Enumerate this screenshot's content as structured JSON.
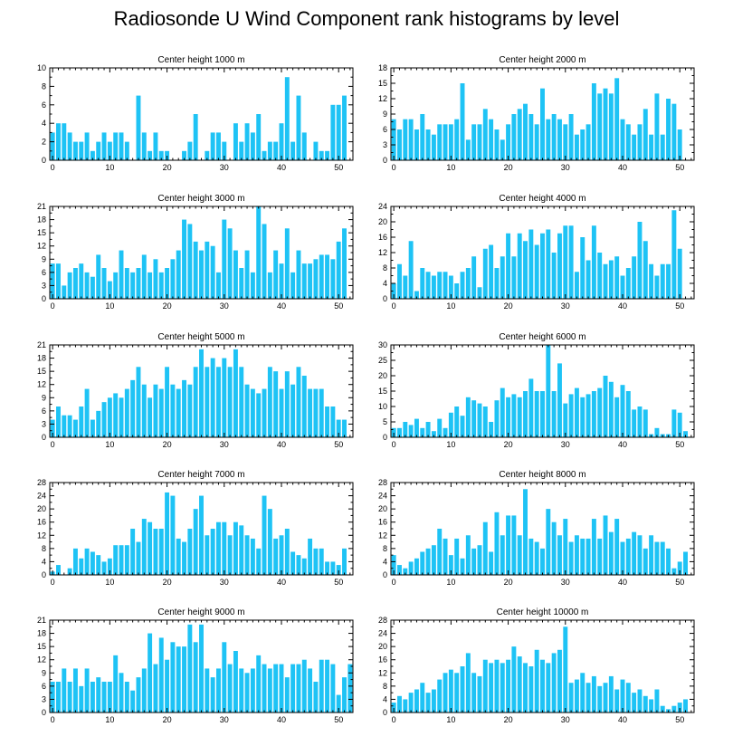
{
  "title": "Radiosonde U Wind Component rank histograms by level",
  "bar_color": "#1ec3f5",
  "chart_data": [
    {
      "type": "bar",
      "title": "Center height 1000 m",
      "xlim": [
        -0.5,
        52.5
      ],
      "ylim": [
        0,
        10
      ],
      "xticks": [
        0,
        10,
        20,
        30,
        40,
        50
      ],
      "yticks": [
        0,
        2,
        4,
        6,
        8,
        10
      ],
      "values": [
        3,
        4,
        4,
        3,
        2,
        2,
        3,
        1,
        2,
        3,
        2,
        3,
        3,
        2,
        0,
        7,
        3,
        1,
        3,
        1,
        1,
        0,
        0,
        1,
        2,
        5,
        0,
        1,
        3,
        3,
        2,
        0,
        4,
        2,
        4,
        3,
        5,
        1,
        2,
        2,
        4,
        9,
        2,
        7,
        3,
        0,
        2,
        1,
        1,
        6,
        6,
        7
      ]
    },
    {
      "type": "bar",
      "title": "Center height 2000 m",
      "xlim": [
        -0.5,
        52.5
      ],
      "ylim": [
        0,
        18
      ],
      "xticks": [
        0,
        10,
        20,
        30,
        40,
        50
      ],
      "yticks": [
        0,
        3,
        6,
        9,
        12,
        15,
        18
      ],
      "values": [
        8,
        6,
        8,
        8,
        6,
        9,
        6,
        5,
        7,
        7,
        7,
        8,
        15,
        4,
        7,
        7,
        10,
        8,
        6,
        4,
        7,
        9,
        10,
        11,
        9,
        7,
        14,
        8,
        9,
        8,
        7,
        9,
        5,
        6,
        7,
        15,
        13,
        14,
        13,
        16,
        8,
        7,
        5,
        7,
        10,
        5,
        13,
        5,
        12,
        11,
        6
      ]
    },
    {
      "type": "bar",
      "title": "Center height 3000 m",
      "xlim": [
        -0.5,
        52.5
      ],
      "ylim": [
        0,
        21
      ],
      "xticks": [
        0,
        10,
        20,
        30,
        40,
        50
      ],
      "yticks": [
        0,
        3,
        6,
        9,
        12,
        15,
        18,
        21
      ],
      "values": [
        8,
        8,
        3,
        6,
        7,
        8,
        6,
        5,
        10,
        7,
        4,
        6,
        11,
        7,
        6,
        7,
        10,
        6,
        9,
        6,
        7,
        9,
        11,
        18,
        17,
        13,
        11,
        13,
        12,
        6,
        18,
        16,
        11,
        7,
        11,
        6,
        21,
        17,
        6,
        11,
        8,
        16,
        6,
        11,
        8,
        8,
        9,
        10,
        10,
        9,
        13,
        16
      ]
    },
    {
      "type": "bar",
      "title": "Center height 4000 m",
      "xlim": [
        -0.5,
        52.5
      ],
      "ylim": [
        0,
        24
      ],
      "xticks": [
        0,
        10,
        20,
        30,
        40,
        50
      ],
      "yticks": [
        0,
        4,
        8,
        12,
        16,
        20,
        24
      ],
      "values": [
        4,
        9,
        6,
        15,
        2,
        8,
        7,
        6,
        7,
        7,
        6,
        4,
        7,
        8,
        11,
        3,
        13,
        14,
        8,
        11,
        17,
        11,
        17,
        15,
        18,
        14,
        17,
        18,
        12,
        17,
        19,
        19,
        7,
        16,
        10,
        19,
        12,
        9,
        10,
        11,
        6,
        8,
        11,
        20,
        15,
        9,
        6,
        9,
        9,
        23,
        13
      ]
    },
    {
      "type": "bar",
      "title": "Center height 5000 m",
      "xlim": [
        -0.5,
        52.5
      ],
      "ylim": [
        0,
        21
      ],
      "xticks": [
        0,
        10,
        20,
        30,
        40,
        50
      ],
      "yticks": [
        0,
        3,
        6,
        9,
        12,
        15,
        18,
        21
      ],
      "values": [
        4,
        7,
        5,
        5,
        4,
        7,
        11,
        4,
        6,
        8,
        9,
        10,
        9,
        11,
        13,
        16,
        12,
        9,
        12,
        11,
        16,
        12,
        11,
        13,
        12,
        16,
        20,
        16,
        18,
        16,
        18,
        16,
        20,
        16,
        12,
        11,
        10,
        11,
        16,
        15,
        11,
        15,
        12,
        16,
        14,
        11,
        11,
        11,
        7,
        7,
        4,
        4
      ]
    },
    {
      "type": "bar",
      "title": "Center height 6000 m",
      "xlim": [
        -0.5,
        52.5
      ],
      "ylim": [
        0,
        30
      ],
      "xticks": [
        0,
        10,
        20,
        30,
        40,
        50
      ],
      "yticks": [
        0,
        5,
        10,
        15,
        20,
        25,
        30
      ],
      "values": [
        3,
        3,
        5,
        4,
        6,
        3,
        5,
        2,
        6,
        3,
        8,
        10,
        7,
        13,
        12,
        11,
        10,
        5,
        12,
        16,
        13,
        14,
        13,
        15,
        19,
        15,
        15,
        30,
        15,
        24,
        11,
        14,
        16,
        13,
        14,
        15,
        16,
        20,
        18,
        13,
        17,
        15,
        9,
        10,
        9,
        1,
        3,
        1,
        1,
        9,
        8,
        2
      ]
    },
    {
      "type": "bar",
      "title": "Center height 7000 m",
      "xlim": [
        -0.5,
        52.5
      ],
      "ylim": [
        0,
        28
      ],
      "xticks": [
        0,
        10,
        20,
        30,
        40,
        50
      ],
      "yticks": [
        0,
        4,
        8,
        12,
        16,
        20,
        24,
        28
      ],
      "values": [
        1,
        3,
        0,
        2,
        8,
        5,
        8,
        7,
        6,
        4,
        5,
        9,
        9,
        9,
        14,
        10,
        17,
        16,
        14,
        14,
        25,
        24,
        11,
        10,
        14,
        20,
        24,
        12,
        14,
        16,
        16,
        12,
        16,
        15,
        12,
        11,
        8,
        24,
        20,
        11,
        12,
        14,
        7,
        6,
        5,
        11,
        8,
        8,
        4,
        4,
        3,
        8
      ]
    },
    {
      "type": "bar",
      "title": "Center height 8000 m",
      "xlim": [
        -0.5,
        52.5
      ],
      "ylim": [
        0,
        28
      ],
      "xticks": [
        0,
        10,
        20,
        30,
        40,
        50
      ],
      "yticks": [
        0,
        4,
        8,
        12,
        16,
        20,
        24,
        28
      ],
      "values": [
        6,
        3,
        2,
        4,
        5,
        7,
        8,
        9,
        14,
        11,
        6,
        11,
        5,
        12,
        8,
        9,
        16,
        7,
        19,
        12,
        18,
        18,
        12,
        26,
        11,
        10,
        8,
        20,
        16,
        12,
        17,
        10,
        12,
        11,
        11,
        17,
        11,
        18,
        13,
        17,
        10,
        11,
        13,
        12,
        8,
        12,
        10,
        10,
        8,
        2,
        4,
        7
      ]
    },
    {
      "type": "bar",
      "title": "Center height 9000 m",
      "xlim": [
        -0.5,
        52.5
      ],
      "ylim": [
        0,
        21
      ],
      "xticks": [
        0,
        10,
        20,
        30,
        40,
        50
      ],
      "yticks": [
        0,
        3,
        6,
        9,
        12,
        15,
        18,
        21
      ],
      "values": [
        7,
        7,
        10,
        7,
        10,
        6,
        10,
        7,
        8,
        7,
        7,
        13,
        9,
        7,
        5,
        8,
        10,
        18,
        11,
        17,
        12,
        16,
        15,
        15,
        20,
        16,
        20,
        10,
        8,
        10,
        16,
        11,
        14,
        10,
        9,
        10,
        13,
        11,
        10,
        11,
        11,
        8,
        11,
        11,
        12,
        10,
        7,
        12,
        12,
        11,
        4,
        8,
        11
      ]
    },
    {
      "type": "bar",
      "title": "Center height 10000 m",
      "xlim": [
        -0.5,
        52.5
      ],
      "ylim": [
        0,
        28
      ],
      "xticks": [
        0,
        10,
        20,
        30,
        40,
        50
      ],
      "yticks": [
        0,
        4,
        8,
        12,
        16,
        20,
        24,
        28
      ],
      "values": [
        3,
        5,
        4,
        6,
        7,
        9,
        6,
        7,
        10,
        12,
        13,
        12,
        14,
        18,
        12,
        11,
        16,
        15,
        16,
        15,
        16,
        20,
        17,
        15,
        14,
        19,
        16,
        15,
        18,
        19,
        26,
        9,
        10,
        12,
        9,
        11,
        8,
        9,
        11,
        7,
        10,
        9,
        6,
        7,
        5,
        4,
        7,
        2,
        1,
        2,
        3,
        4
      ]
    }
  ]
}
